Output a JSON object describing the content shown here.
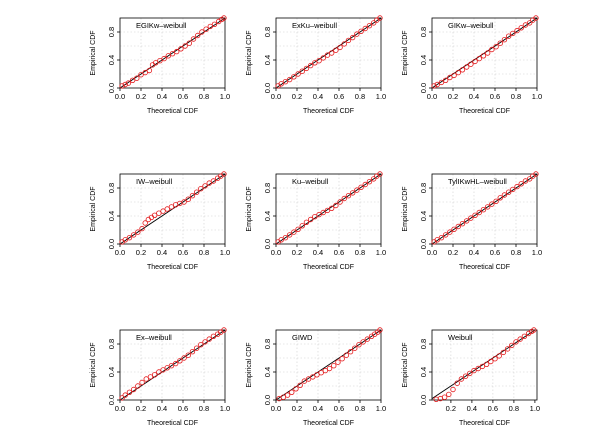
{
  "figure": {
    "xlabel": "Theoretical CDF",
    "ylabel": "Empirical CDF",
    "theory_color": "#000000",
    "point_color": "#e41a1c"
  },
  "chart_data": [
    {
      "type": "scatter",
      "title": "EGIKw–weibull",
      "xlabel": "Theoretical CDF",
      "ylabel": "Empirical CDF",
      "xlim": [
        0,
        1
      ],
      "ylim": [
        0,
        1
      ],
      "xticks": [
        "0.0",
        "0.2",
        "0.4",
        "0.6",
        "0.8",
        "1.0"
      ],
      "yticks": [
        "0.0",
        "0.4",
        "0.8"
      ],
      "x": [
        0.02,
        0.05,
        0.08,
        0.12,
        0.16,
        0.2,
        0.24,
        0.28,
        0.31,
        0.34,
        0.38,
        0.42,
        0.46,
        0.5,
        0.54,
        0.58,
        0.62,
        0.66,
        0.7,
        0.74,
        0.78,
        0.82,
        0.86,
        0.9,
        0.94,
        0.97,
        0.99
      ],
      "y": [
        0.03,
        0.05,
        0.07,
        0.11,
        0.14,
        0.19,
        0.22,
        0.25,
        0.33,
        0.36,
        0.39,
        0.42,
        0.46,
        0.49,
        0.52,
        0.56,
        0.6,
        0.64,
        0.7,
        0.75,
        0.8,
        0.84,
        0.88,
        0.91,
        0.95,
        0.98,
        1.0
      ]
    },
    {
      "type": "scatter",
      "title": "ExKu–weibull",
      "xlabel": "Theoretical CDF",
      "ylabel": "Empirical CDF",
      "xlim": [
        0,
        1
      ],
      "ylim": [
        0,
        1
      ],
      "xticks": [
        "0.0",
        "0.2",
        "0.4",
        "0.6",
        "0.8",
        "1.0"
      ],
      "yticks": [
        "0.0",
        "0.4",
        "0.8"
      ],
      "x": [
        0.02,
        0.05,
        0.09,
        0.13,
        0.17,
        0.21,
        0.25,
        0.29,
        0.33,
        0.37,
        0.41,
        0.45,
        0.49,
        0.53,
        0.57,
        0.61,
        0.65,
        0.69,
        0.73,
        0.77,
        0.81,
        0.85,
        0.89,
        0.93,
        0.96,
        0.99
      ],
      "y": [
        0.03,
        0.06,
        0.09,
        0.12,
        0.16,
        0.2,
        0.24,
        0.28,
        0.32,
        0.36,
        0.39,
        0.43,
        0.47,
        0.5,
        0.54,
        0.58,
        0.63,
        0.68,
        0.72,
        0.77,
        0.81,
        0.85,
        0.89,
        0.93,
        0.97,
        1.0
      ]
    },
    {
      "type": "scatter",
      "title": "GIKw–weibull",
      "xlabel": "Theoretical CDF",
      "ylabel": "Empirical CDF",
      "xlim": [
        0,
        1
      ],
      "ylim": [
        0,
        1
      ],
      "xticks": [
        "0.0",
        "0.2",
        "0.4",
        "0.6",
        "0.8",
        "1.0"
      ],
      "yticks": [
        "0.0",
        "0.4",
        "0.8"
      ],
      "x": [
        0.02,
        0.05,
        0.09,
        0.13,
        0.17,
        0.21,
        0.25,
        0.29,
        0.33,
        0.37,
        0.41,
        0.45,
        0.49,
        0.53,
        0.57,
        0.61,
        0.65,
        0.69,
        0.73,
        0.77,
        0.81,
        0.85,
        0.89,
        0.93,
        0.96,
        0.99
      ],
      "y": [
        0.03,
        0.05,
        0.08,
        0.11,
        0.15,
        0.18,
        0.22,
        0.26,
        0.3,
        0.34,
        0.38,
        0.42,
        0.46,
        0.5,
        0.55,
        0.59,
        0.64,
        0.69,
        0.74,
        0.78,
        0.82,
        0.86,
        0.9,
        0.93,
        0.97,
        1.0
      ]
    },
    {
      "type": "scatter",
      "title": "IW–weibull",
      "xlabel": "Theoretical CDF",
      "ylabel": "Empirical CDF",
      "xlim": [
        0,
        1
      ],
      "ylim": [
        0,
        1
      ],
      "xticks": [
        "0.0",
        "0.2",
        "0.4",
        "0.6",
        "0.8",
        "1.0"
      ],
      "yticks": [
        "0.0",
        "0.4",
        "0.8"
      ],
      "x": [
        0.02,
        0.05,
        0.09,
        0.13,
        0.17,
        0.21,
        0.24,
        0.27,
        0.3,
        0.33,
        0.37,
        0.41,
        0.45,
        0.49,
        0.53,
        0.57,
        0.61,
        0.65,
        0.69,
        0.73,
        0.77,
        0.81,
        0.85,
        0.89,
        0.93,
        0.96,
        0.99
      ],
      "y": [
        0.03,
        0.06,
        0.09,
        0.13,
        0.17,
        0.22,
        0.3,
        0.35,
        0.38,
        0.41,
        0.44,
        0.47,
        0.5,
        0.53,
        0.56,
        0.58,
        0.6,
        0.64,
        0.69,
        0.74,
        0.79,
        0.83,
        0.87,
        0.9,
        0.94,
        0.97,
        1.0
      ]
    },
    {
      "type": "scatter",
      "title": "Ku–weibull",
      "xlabel": "Theoretical CDF",
      "ylabel": "Empirical CDF",
      "xlim": [
        0,
        1
      ],
      "ylim": [
        0,
        1
      ],
      "xticks": [
        "0.0",
        "0.2",
        "0.4",
        "0.6",
        "0.8",
        "1.0"
      ],
      "yticks": [
        "0.0",
        "0.4",
        "0.8"
      ],
      "x": [
        0.02,
        0.05,
        0.09,
        0.13,
        0.17,
        0.21,
        0.25,
        0.29,
        0.33,
        0.37,
        0.41,
        0.45,
        0.49,
        0.53,
        0.57,
        0.61,
        0.65,
        0.69,
        0.73,
        0.77,
        0.81,
        0.85,
        0.89,
        0.93,
        0.96,
        0.99
      ],
      "y": [
        0.03,
        0.06,
        0.09,
        0.13,
        0.17,
        0.21,
        0.26,
        0.31,
        0.35,
        0.39,
        0.42,
        0.45,
        0.48,
        0.51,
        0.55,
        0.6,
        0.65,
        0.69,
        0.73,
        0.77,
        0.81,
        0.85,
        0.89,
        0.93,
        0.97,
        1.0
      ]
    },
    {
      "type": "scatter",
      "title": "TylIKwHL–weibull",
      "xlabel": "Theoretical CDF",
      "ylabel": "Empirical CDF",
      "xlim": [
        0,
        1
      ],
      "ylim": [
        0,
        1
      ],
      "xticks": [
        "0.0",
        "0.2",
        "0.4",
        "0.6",
        "0.8",
        "1.0"
      ],
      "yticks": [
        "0.0",
        "0.4",
        "0.8"
      ],
      "x": [
        0.02,
        0.05,
        0.09,
        0.13,
        0.17,
        0.21,
        0.25,
        0.29,
        0.33,
        0.37,
        0.41,
        0.45,
        0.49,
        0.53,
        0.57,
        0.61,
        0.65,
        0.69,
        0.73,
        0.77,
        0.81,
        0.85,
        0.89,
        0.93,
        0.96,
        0.99
      ],
      "y": [
        0.03,
        0.06,
        0.09,
        0.13,
        0.17,
        0.21,
        0.25,
        0.29,
        0.33,
        0.37,
        0.41,
        0.45,
        0.49,
        0.53,
        0.57,
        0.61,
        0.66,
        0.7,
        0.74,
        0.78,
        0.82,
        0.86,
        0.9,
        0.93,
        0.97,
        1.0
      ]
    },
    {
      "type": "scatter",
      "title": "Ex–weibull",
      "xlabel": "Theoretical CDF",
      "ylabel": "Empirical CDF",
      "xlim": [
        0,
        1
      ],
      "ylim": [
        0,
        1
      ],
      "xticks": [
        "0.0",
        "0.2",
        "0.4",
        "0.6",
        "0.8",
        "1.0"
      ],
      "yticks": [
        "0.0",
        "0.4",
        "0.8"
      ],
      "x": [
        0.02,
        0.05,
        0.09,
        0.13,
        0.17,
        0.21,
        0.25,
        0.29,
        0.33,
        0.37,
        0.41,
        0.45,
        0.49,
        0.53,
        0.57,
        0.61,
        0.65,
        0.69,
        0.73,
        0.77,
        0.81,
        0.85,
        0.89,
        0.93,
        0.96,
        0.99
      ],
      "y": [
        0.03,
        0.07,
        0.11,
        0.15,
        0.2,
        0.25,
        0.3,
        0.33,
        0.36,
        0.4,
        0.43,
        0.46,
        0.49,
        0.52,
        0.56,
        0.6,
        0.64,
        0.69,
        0.74,
        0.79,
        0.83,
        0.87,
        0.91,
        0.94,
        0.97,
        1.0
      ]
    },
    {
      "type": "scatter",
      "title": "GIWD",
      "xlabel": "Theoretical CDF",
      "ylabel": "Empirical CDF",
      "xlim": [
        0,
        1
      ],
      "ylim": [
        0,
        1
      ],
      "xticks": [
        "0.0",
        "0.2",
        "0.4",
        "0.6",
        "0.8",
        "1.0"
      ],
      "yticks": [
        "0.0",
        "0.4",
        "0.8"
      ],
      "x": [
        0.03,
        0.07,
        0.11,
        0.15,
        0.19,
        0.23,
        0.27,
        0.31,
        0.35,
        0.39,
        0.43,
        0.47,
        0.51,
        0.55,
        0.59,
        0.63,
        0.67,
        0.71,
        0.75,
        0.79,
        0.83,
        0.87,
        0.91,
        0.94,
        0.97,
        0.99
      ],
      "y": [
        0.02,
        0.04,
        0.07,
        0.11,
        0.16,
        0.21,
        0.27,
        0.3,
        0.33,
        0.36,
        0.39,
        0.42,
        0.45,
        0.49,
        0.54,
        0.59,
        0.64,
        0.69,
        0.74,
        0.79,
        0.83,
        0.87,
        0.91,
        0.94,
        0.97,
        1.0
      ]
    },
    {
      "type": "scatter",
      "title": "Weibull",
      "xlabel": "Theoretical CDF",
      "ylabel": "Empirical CDF",
      "xlim": [
        0.02,
        1.02
      ],
      "ylim": [
        0,
        1
      ],
      "xticks": [
        "0.2",
        "0.4",
        "0.6",
        "0.8",
        "1.0"
      ],
      "yticks": [
        "0.0",
        "0.4",
        "0.8"
      ],
      "x": [
        0.06,
        0.1,
        0.14,
        0.18,
        0.22,
        0.26,
        0.3,
        0.34,
        0.38,
        0.42,
        0.46,
        0.5,
        0.54,
        0.58,
        0.62,
        0.66,
        0.7,
        0.74,
        0.78,
        0.82,
        0.86,
        0.9,
        0.94,
        0.97,
        0.99
      ],
      "y": [
        0.01,
        0.02,
        0.04,
        0.08,
        0.15,
        0.24,
        0.3,
        0.34,
        0.38,
        0.42,
        0.45,
        0.48,
        0.51,
        0.55,
        0.59,
        0.63,
        0.68,
        0.73,
        0.78,
        0.83,
        0.87,
        0.91,
        0.95,
        0.98,
        1.0
      ]
    }
  ]
}
